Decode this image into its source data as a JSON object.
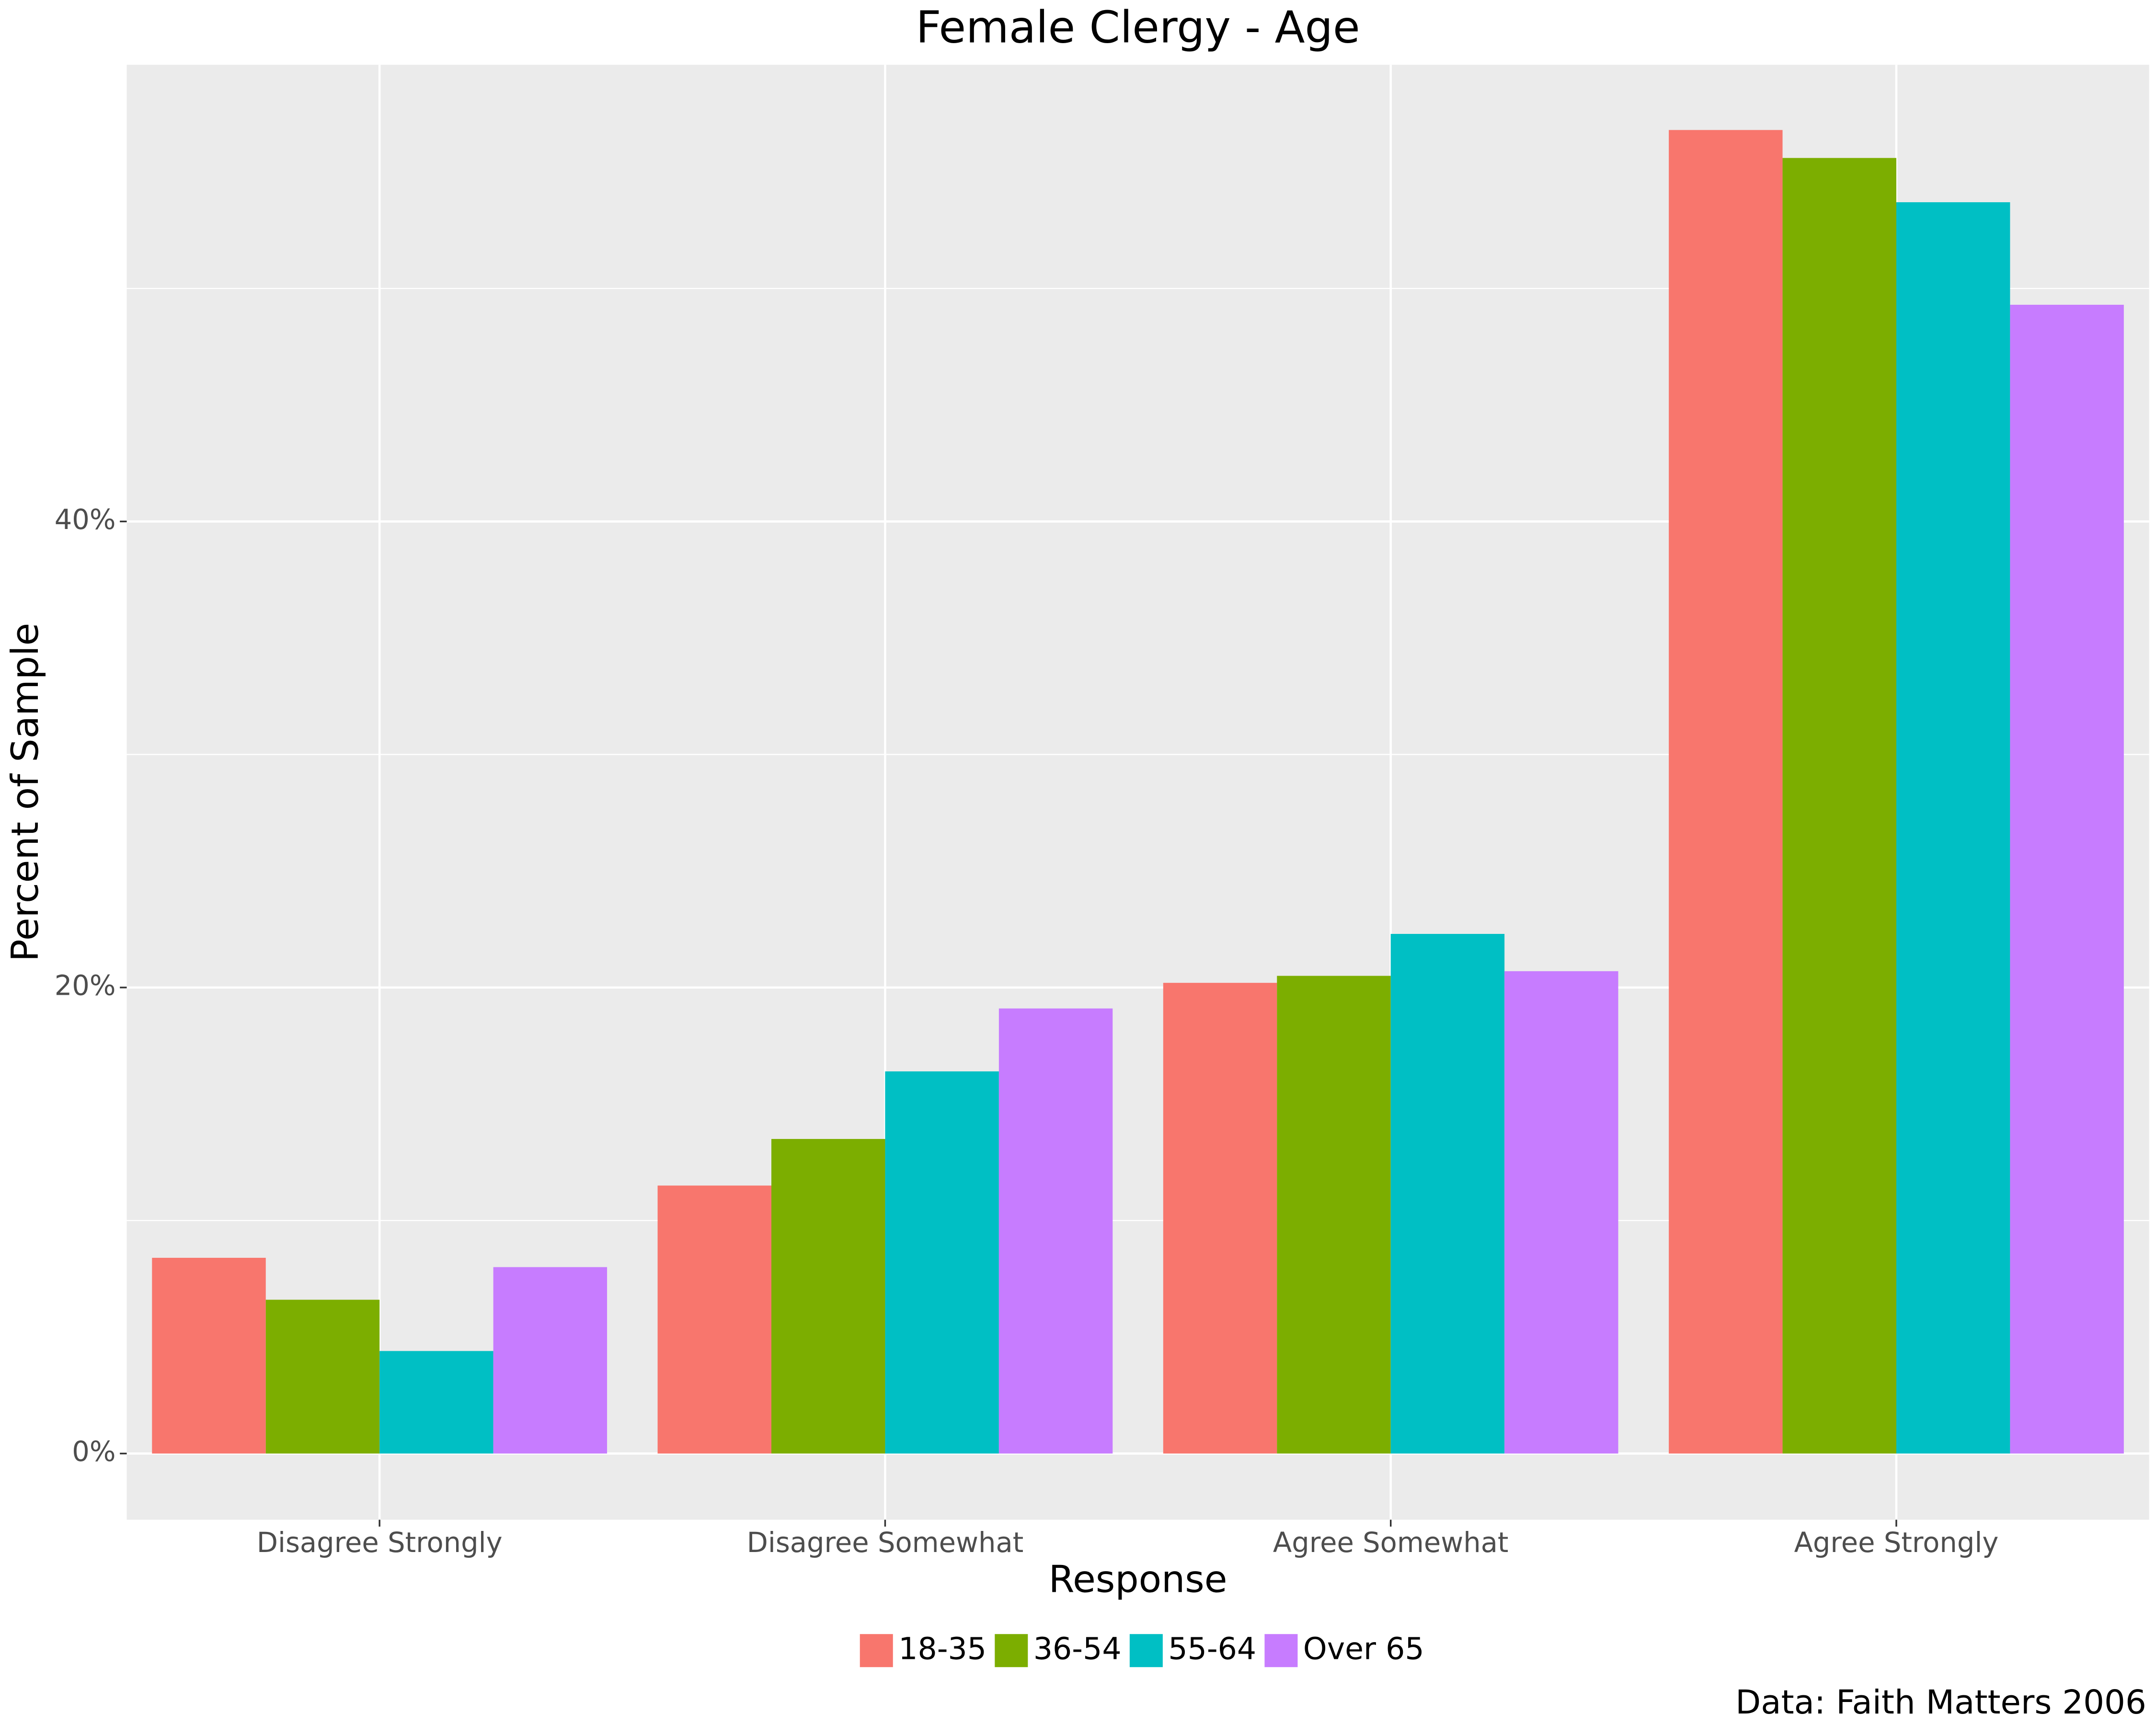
{
  "chart_data": {
    "type": "bar",
    "title": "Female Clergy - Age",
    "x_label": "Response",
    "y_label": "Percent of Sample",
    "caption": "Data: Faith Matters 2006",
    "categories": [
      "Disagree Strongly",
      "Disagree Somewhat",
      "Agree Somewhat",
      "Agree Strongly"
    ],
    "series": [
      {
        "name": "18-35",
        "color": "#f8766d",
        "values": [
          8.4,
          11.5,
          20.2,
          56.8
        ]
      },
      {
        "name": "36-54",
        "color": "#7cae00",
        "values": [
          6.6,
          13.5,
          20.5,
          55.6
        ]
      },
      {
        "name": "55-64",
        "color": "#00bfc4",
        "values": [
          4.4,
          16.4,
          22.3,
          53.7
        ]
      },
      {
        "name": "Over 65",
        "color": "#c77cff",
        "values": [
          8.0,
          19.1,
          20.7,
          49.3
        ]
      }
    ],
    "ylim": [
      -2.84,
      59.6
    ],
    "yticks": [
      {
        "value": 0,
        "label": "0%"
      },
      {
        "value": 20,
        "label": "20%"
      },
      {
        "value": 40,
        "label": "40%"
      }
    ],
    "y_minor_ticks": [
      10,
      30,
      50
    ],
    "grid": true,
    "legend_position": "bottom"
  }
}
